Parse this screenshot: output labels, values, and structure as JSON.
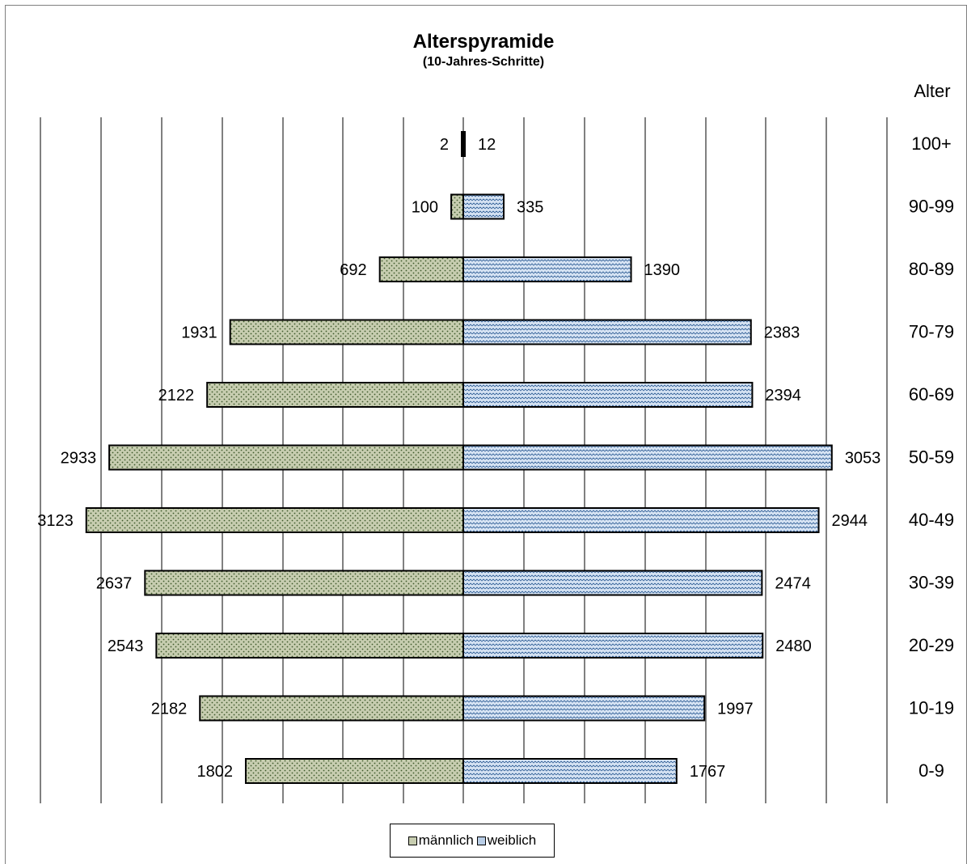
{
  "chart_data": {
    "type": "bar",
    "title": "Alterspyramide",
    "subtitle": "(10-Jahres-Schritte)",
    "ylabel": "Alter",
    "categories": [
      "100+",
      "90-99",
      "80-89",
      "70-79",
      "60-69",
      "50-59",
      "40-49",
      "30-39",
      "20-29",
      "10-19",
      "0-9"
    ],
    "series": [
      {
        "name": "männlich",
        "values": [
          2,
          100,
          692,
          1931,
          2122,
          2933,
          3123,
          2637,
          2543,
          2182,
          1802
        ]
      },
      {
        "name": "weiblich",
        "values": [
          12,
          335,
          1390,
          2383,
          2394,
          3053,
          2944,
          2474,
          2480,
          1997,
          1767
        ]
      }
    ],
    "xlim": [
      -3500,
      3500
    ],
    "grid": true,
    "legend_position": "bottom",
    "colors": {
      "maennlich_fill": "#c7cdb0",
      "maennlich_dots": "#3f5a2c",
      "weiblich_fill": "#d6e3f3",
      "weiblich_wave": "#2f5e96",
      "grid": "#000000"
    }
  }
}
